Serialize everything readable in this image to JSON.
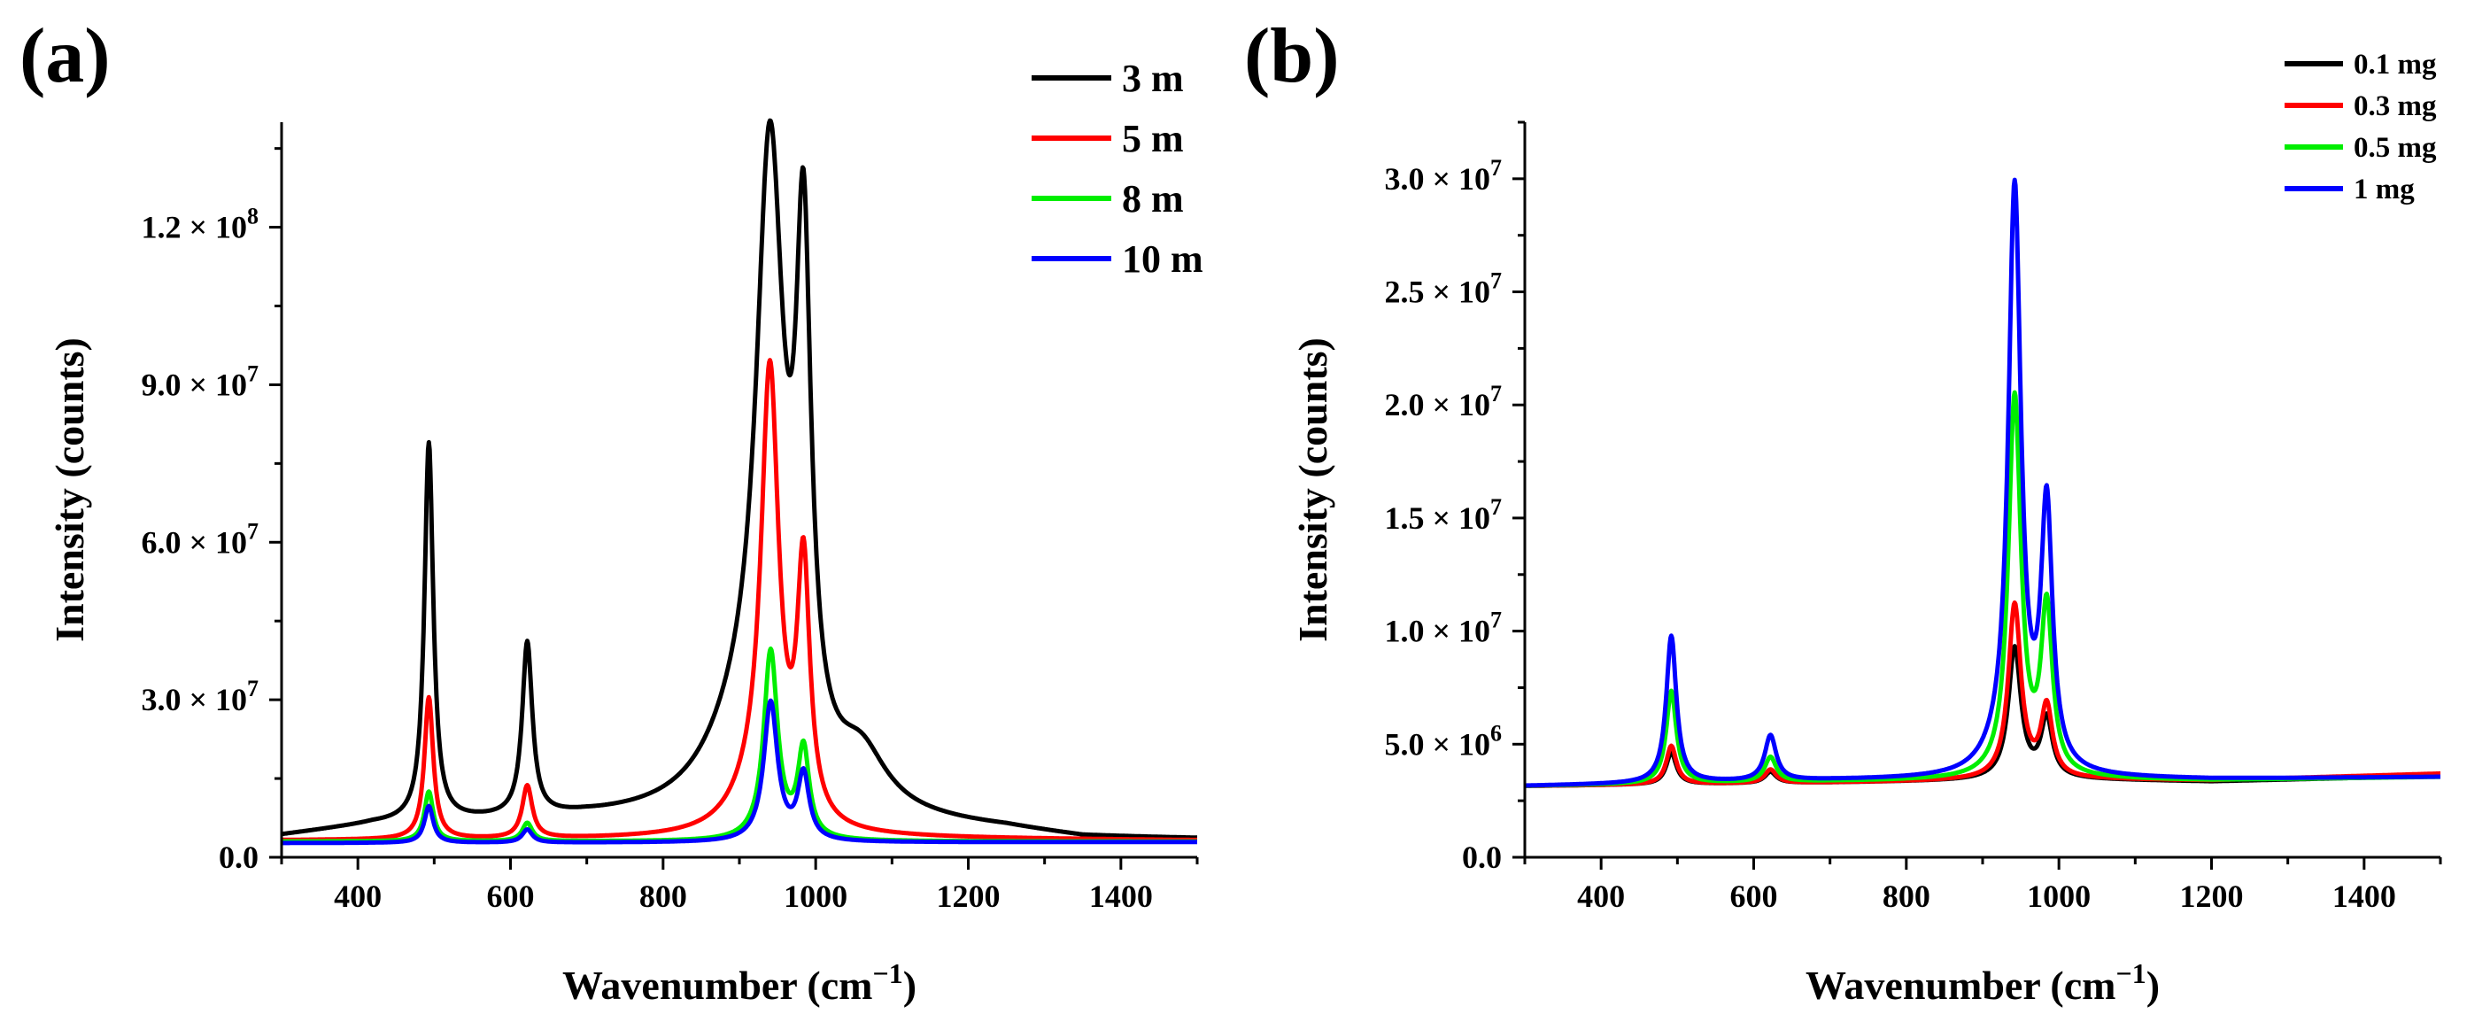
{
  "chart_data": [
    {
      "panel": "(a)",
      "type": "line",
      "xlabel": "Wavenumber (cm",
      "xlabel_sup": "−1",
      "xlabel_close": ")",
      "ylabel": "Intensity (counts)",
      "xlim": [
        300,
        1500
      ],
      "ylim": [
        0,
        140000000
      ],
      "xticks": [
        400,
        600,
        800,
        1000,
        1200,
        1400
      ],
      "yticks": [
        {
          "value": 0,
          "label": "0.0",
          "exp": ""
        },
        {
          "value": 30000000,
          "label": "3.0 × 10",
          "exp": "7"
        },
        {
          "value": 60000000,
          "label": "6.0 × 10",
          "exp": "7"
        },
        {
          "value": 90000000,
          "label": "9.0 × 10",
          "exp": "7"
        },
        {
          "value": 120000000,
          "label": "1.2 × 10",
          "exp": "8"
        }
      ],
      "legend_position": "top-right",
      "series": [
        {
          "name": "3 m",
          "color": "#000000",
          "baseline": [
            [
              300,
              4000000
            ],
            [
              420,
              6000000
            ],
            [
              700,
              7000000
            ],
            [
              1100,
              6000000
            ],
            [
              1250,
              5000000
            ],
            [
              1350,
              3500000
            ],
            [
              1500,
              3300000
            ]
          ],
          "peaks": [
            [
              493,
              72000000,
              7
            ],
            [
              622,
              33000000,
              8
            ],
            [
              940,
              118000000,
              22
            ],
            [
              984,
              95000000,
              12
            ],
            [
              900,
              12000000,
              60
            ],
            [
              1060,
              10000000,
              40
            ]
          ]
        },
        {
          "name": "5 m",
          "color": "#ff0000",
          "baseline": [
            [
              300,
              3200000
            ],
            [
              700,
              3400000
            ],
            [
              1100,
              3600000
            ],
            [
              1500,
              3200000
            ]
          ],
          "peaks": [
            [
              493,
              27000000,
              7
            ],
            [
              622,
              10000000,
              8
            ],
            [
              940,
              84000000,
              14
            ],
            [
              984,
              48000000,
              10
            ],
            [
              920,
              6000000,
              40
            ]
          ]
        },
        {
          "name": "8 m",
          "color": "#00ee00",
          "baseline": [
            [
              300,
              3000000
            ],
            [
              1500,
              3000000
            ]
          ],
          "peaks": [
            [
              493,
              9500000,
              7
            ],
            [
              622,
              3500000,
              8
            ],
            [
              941,
              36000000,
              11
            ],
            [
              984,
              17000000,
              9
            ]
          ]
        },
        {
          "name": "10 m",
          "color": "#0000ff",
          "baseline": [
            [
              300,
              2700000
            ],
            [
              1500,
              2900000
            ]
          ],
          "peaks": [
            [
              493,
              7000000,
              7
            ],
            [
              622,
              2500000,
              8
            ],
            [
              941,
              26500000,
              11
            ],
            [
              984,
              12500000,
              9
            ]
          ]
        }
      ]
    },
    {
      "panel": "(b)",
      "type": "line",
      "xlabel": "Wavenumber (cm",
      "xlabel_sup": "−1",
      "xlabel_close": ")",
      "ylabel": "Intensity (counts)",
      "xlim": [
        300,
        1500
      ],
      "ylim": [
        0,
        32500000
      ],
      "xticks": [
        400,
        600,
        800,
        1000,
        1200,
        1400
      ],
      "yticks": [
        {
          "value": 0,
          "label": "0.0",
          "exp": ""
        },
        {
          "value": 5000000,
          "label": "5.0 × 10",
          "exp": "6"
        },
        {
          "value": 10000000,
          "label": "1.0 × 10",
          "exp": "7"
        },
        {
          "value": 15000000,
          "label": "1.5 × 10",
          "exp": "7"
        },
        {
          "value": 20000000,
          "label": "2.0 × 10",
          "exp": "7"
        },
        {
          "value": 25000000,
          "label": "2.5 × 10",
          "exp": "7"
        },
        {
          "value": 30000000,
          "label": "3.0 × 10",
          "exp": "7"
        }
      ],
      "legend_position": "top-right",
      "series": [
        {
          "name": "0.1 mg",
          "color": "#000000",
          "baseline": [
            [
              300,
              3150000
            ],
            [
              700,
              3300000
            ],
            [
              1000,
              3450000
            ],
            [
              1200,
              3350000
            ],
            [
              1500,
              3600000
            ]
          ],
          "peaks": [
            [
              492,
              1400000,
              8
            ],
            [
              622,
              500000,
              9
            ],
            [
              942,
              5800000,
              10
            ],
            [
              984,
              2600000,
              9
            ]
          ]
        },
        {
          "name": "0.3 mg",
          "color": "#ff0000",
          "baseline": [
            [
              300,
              3150000
            ],
            [
              700,
              3300000
            ],
            [
              1000,
              3450000
            ],
            [
              1200,
              3400000
            ],
            [
              1500,
              3700000
            ]
          ],
          "peaks": [
            [
              492,
              1700000,
              8
            ],
            [
              622,
              600000,
              9
            ],
            [
              942,
              7700000,
              10
            ],
            [
              984,
              3100000,
              9
            ]
          ]
        },
        {
          "name": "0.5 mg",
          "color": "#00ee00",
          "baseline": [
            [
              300,
              3150000
            ],
            [
              700,
              3350000
            ],
            [
              1000,
              3450000
            ],
            [
              1200,
              3400000
            ],
            [
              1500,
              3550000
            ]
          ],
          "peaks": [
            [
              492,
              4100000,
              8
            ],
            [
              622,
              1100000,
              9
            ],
            [
              942,
              16800000,
              10
            ],
            [
              984,
              7300000,
              9
            ]
          ]
        },
        {
          "name": "1 mg",
          "color": "#0000ff",
          "baseline": [
            [
              300,
              3150000
            ],
            [
              700,
              3400000
            ],
            [
              1000,
              3500000
            ],
            [
              1200,
              3450000
            ],
            [
              1500,
              3550000
            ]
          ],
          "peaks": [
            [
              492,
              6500000,
              8
            ],
            [
              622,
              2000000,
              9
            ],
            [
              942,
              25700000,
              10
            ],
            [
              984,
              11500000,
              9
            ],
            [
              920,
              400000,
              30
            ]
          ]
        }
      ]
    }
  ]
}
